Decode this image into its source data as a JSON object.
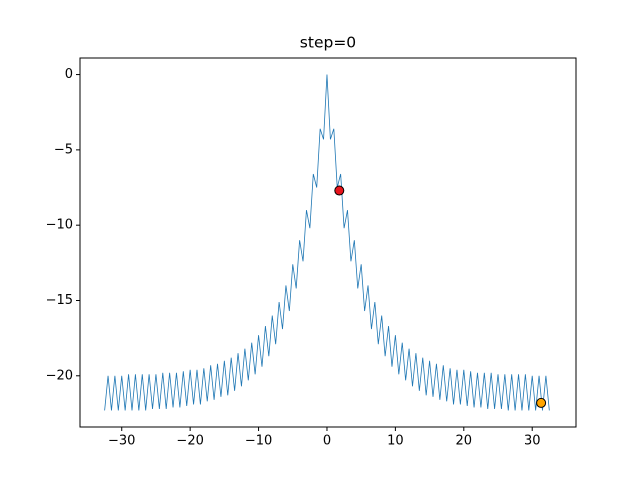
{
  "chart_data": {
    "type": "line",
    "title": "step=0",
    "x": [
      -32.5,
      -32,
      -31.5,
      -31,
      -30.5,
      -30,
      -29.5,
      -29,
      -28.5,
      -28,
      -27.5,
      -27,
      -26.5,
      -26,
      -25.5,
      -25,
      -24.5,
      -24,
      -23.5,
      -23,
      -22.5,
      -22,
      -21.5,
      -21,
      -20.5,
      -20,
      -19.5,
      -19,
      -18.5,
      -18,
      -17.5,
      -17,
      -16.5,
      -16,
      -15.5,
      -15,
      -14.5,
      -14,
      -13.5,
      -13,
      -12.5,
      -12,
      -11.5,
      -11,
      -10.5,
      -10,
      -9.5,
      -9,
      -8.5,
      -8,
      -7.5,
      -7,
      -6.5,
      -6,
      -5.5,
      -5,
      -4.5,
      -4,
      -3.5,
      -3,
      -2.5,
      -2,
      -1.5,
      -1,
      -0.5,
      0,
      0.5,
      1,
      1.5,
      2,
      2.5,
      3,
      3.5,
      4,
      4.5,
      5,
      5.5,
      6,
      6.5,
      7,
      7.5,
      8,
      8.5,
      9,
      9.5,
      10,
      10.5,
      11,
      11.5,
      12,
      12.5,
      13,
      13.5,
      14,
      14.5,
      15,
      15.5,
      16,
      16.5,
      17,
      17.5,
      18,
      18.5,
      19,
      19.5,
      20,
      20.5,
      21,
      21.5,
      22,
      22.5,
      23,
      23.5,
      24,
      24.5,
      25,
      25.5,
      26,
      26.5,
      27,
      27.5,
      28,
      28.5,
      29,
      29.5,
      30,
      30.5,
      31,
      31.5,
      32,
      32.5
    ],
    "series": [
      {
        "color": "#1f77b4",
        "values": [
          -22.3,
          -20.0,
          -22.3,
          -20.0,
          -22.3,
          -20.0,
          -22.3,
          -19.9,
          -22.3,
          -19.9,
          -22.3,
          -19.9,
          -22.3,
          -19.9,
          -22.2,
          -19.9,
          -22.2,
          -19.8,
          -22.2,
          -19.8,
          -22.1,
          -19.8,
          -22.1,
          -19.7,
          -22.0,
          -19.6,
          -21.9,
          -19.6,
          -21.9,
          -19.5,
          -21.7,
          -19.3,
          -21.6,
          -19.2,
          -21.4,
          -19.0,
          -21.3,
          -18.8,
          -21.0,
          -18.5,
          -20.7,
          -18.2,
          -20.3,
          -17.8,
          -19.9,
          -17.3,
          -19.4,
          -16.7,
          -18.7,
          -16.0,
          -17.9,
          -15.1,
          -16.9,
          -14.0,
          -15.7,
          -12.6,
          -14.2,
          -11.0,
          -12.4,
          -9.0,
          -10.2,
          -6.6,
          -7.5,
          -3.6,
          -4.3,
          0,
          -4.3,
          -3.6,
          -7.5,
          -6.6,
          -10.2,
          -9.0,
          -12.4,
          -11.0,
          -14.2,
          -12.6,
          -15.7,
          -14.0,
          -16.9,
          -15.1,
          -17.9,
          -16.0,
          -18.7,
          -16.7,
          -19.4,
          -17.3,
          -19.9,
          -17.8,
          -20.3,
          -18.2,
          -20.7,
          -18.5,
          -21.0,
          -18.8,
          -21.3,
          -19.0,
          -21.4,
          -19.2,
          -21.6,
          -19.3,
          -21.7,
          -19.5,
          -21.9,
          -19.6,
          -21.9,
          -19.6,
          -22.0,
          -19.7,
          -22.1,
          -19.8,
          -22.1,
          -19.8,
          -22.2,
          -19.8,
          -22.2,
          -19.9,
          -22.2,
          -19.9,
          -22.3,
          -19.9,
          -22.3,
          -19.9,
          -22.3,
          -19.9,
          -22.3,
          -20.0,
          -22.3,
          -20.0,
          -22.3,
          -20.0,
          -22.3
        ]
      }
    ],
    "points": [
      {
        "x": 1.8,
        "y": -7.7,
        "color": "#e8141c"
      },
      {
        "x": 31.3,
        "y": -21.8,
        "color": "#ffa500"
      }
    ],
    "xlim": [
      -36.1,
      36.4
    ],
    "ylim": [
      -23.4,
      1.1
    ],
    "xticks": [
      {
        "value": -30,
        "label": "−30"
      },
      {
        "value": -20,
        "label": "−20"
      },
      {
        "value": -10,
        "label": "−10"
      },
      0,
      10,
      20,
      30
    ],
    "yticks": [
      {
        "value": -20,
        "label": "−20"
      },
      {
        "value": -15,
        "label": "−15"
      },
      {
        "value": -10,
        "label": "−10"
      },
      {
        "value": -5,
        "label": "−5"
      },
      0
    ]
  }
}
